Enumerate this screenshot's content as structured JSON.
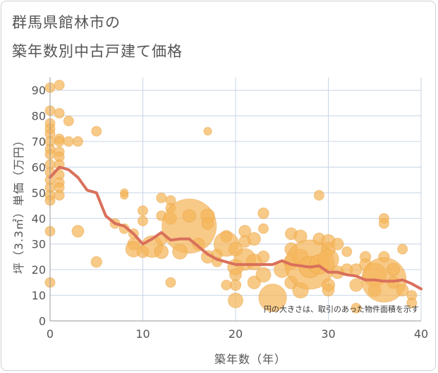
{
  "title_line1": "群馬県館林市の",
  "title_line2": "築年数別中古戸建て価格",
  "chart_data": {
    "type": "scatter",
    "title": "群馬県館林市の築年数別中古戸建て価格",
    "xlabel": "築年数（年）",
    "ylabel": "坪（3.3㎡）単価（万円）",
    "xlim": [
      0,
      40
    ],
    "ylim": [
      0,
      95
    ],
    "xticks": [
      0,
      10,
      20,
      30,
      40
    ],
    "yticks": [
      0,
      10,
      20,
      30,
      40,
      50,
      60,
      70,
      80,
      90
    ],
    "grid": true,
    "annotation": "円の大きさは、取引のあった物件面積を示す",
    "colors": {
      "bubble": "#f5b55a",
      "bubble_stroke": "#e8a444",
      "trend": "#d9705b",
      "grid": "#c8d4e3",
      "axis": "#999999"
    },
    "bubbles": [
      {
        "x": 0,
        "y": 91,
        "size": 1
      },
      {
        "x": 1,
        "y": 92,
        "size": 1
      },
      {
        "x": 0,
        "y": 82,
        "size": 1
      },
      {
        "x": 1,
        "y": 81,
        "size": 1
      },
      {
        "x": 2,
        "y": 78,
        "size": 1
      },
      {
        "x": 0,
        "y": 77,
        "size": 1
      },
      {
        "x": 0,
        "y": 75,
        "size": 1
      },
      {
        "x": 0,
        "y": 73,
        "size": 1
      },
      {
        "x": 1,
        "y": 71,
        "size": 1
      },
      {
        "x": 0,
        "y": 70,
        "size": 1
      },
      {
        "x": 1,
        "y": 70,
        "size": 1
      },
      {
        "x": 2,
        "y": 70,
        "size": 1
      },
      {
        "x": 3,
        "y": 70,
        "size": 1
      },
      {
        "x": 0,
        "y": 67,
        "size": 1
      },
      {
        "x": 1,
        "y": 66,
        "size": 1
      },
      {
        "x": 0,
        "y": 65,
        "size": 1
      },
      {
        "x": 1,
        "y": 64,
        "size": 1
      },
      {
        "x": 0,
        "y": 61,
        "size": 1
      },
      {
        "x": 1,
        "y": 61,
        "size": 1
      },
      {
        "x": 0,
        "y": 58,
        "size": 1
      },
      {
        "x": 1,
        "y": 57,
        "size": 1
      },
      {
        "x": 0,
        "y": 55,
        "size": 1
      },
      {
        "x": 1,
        "y": 54,
        "size": 1
      },
      {
        "x": 0,
        "y": 52,
        "size": 1
      },
      {
        "x": 1,
        "y": 52,
        "size": 1
      },
      {
        "x": 0,
        "y": 49,
        "size": 1
      },
      {
        "x": 1,
        "y": 49,
        "size": 1
      },
      {
        "x": 0,
        "y": 47,
        "size": 1
      },
      {
        "x": 0,
        "y": 35,
        "size": 1
      },
      {
        "x": 0,
        "y": 15,
        "size": 1
      },
      {
        "x": 5,
        "y": 74,
        "size": 1
      },
      {
        "x": 17,
        "y": 74,
        "size": 0.8
      },
      {
        "x": 3,
        "y": 35,
        "size": 1.2
      },
      {
        "x": 5,
        "y": 23,
        "size": 1.1
      },
      {
        "x": 8,
        "y": 50,
        "size": 0.8
      },
      {
        "x": 8,
        "y": 49,
        "size": 0.8
      },
      {
        "x": 7,
        "y": 38,
        "size": 1
      },
      {
        "x": 8,
        "y": 36,
        "size": 1
      },
      {
        "x": 9,
        "y": 34,
        "size": 1
      },
      {
        "x": 9,
        "y": 30,
        "size": 1.2
      },
      {
        "x": 9,
        "y": 28,
        "size": 1.6
      },
      {
        "x": 10,
        "y": 43,
        "size": 1
      },
      {
        "x": 10,
        "y": 39,
        "size": 1
      },
      {
        "x": 10,
        "y": 27,
        "size": 1.2
      },
      {
        "x": 11,
        "y": 29,
        "size": 2.2
      },
      {
        "x": 12,
        "y": 48,
        "size": 1
      },
      {
        "x": 12,
        "y": 41,
        "size": 1
      },
      {
        "x": 12,
        "y": 32,
        "size": 1.2
      },
      {
        "x": 12,
        "y": 27,
        "size": 1.4
      },
      {
        "x": 13,
        "y": 47,
        "size": 1
      },
      {
        "x": 13,
        "y": 44,
        "size": 1
      },
      {
        "x": 13,
        "y": 40,
        "size": 1.2
      },
      {
        "x": 13,
        "y": 15,
        "size": 1
      },
      {
        "x": 15,
        "y": 37,
        "size": 5.5
      },
      {
        "x": 15,
        "y": 41,
        "size": 1.3
      },
      {
        "x": 14,
        "y": 27,
        "size": 1.5
      },
      {
        "x": 16,
        "y": 30,
        "size": 1.2
      },
      {
        "x": 17,
        "y": 41,
        "size": 1.4
      },
      {
        "x": 17,
        "y": 38,
        "size": 1.2
      },
      {
        "x": 17,
        "y": 25,
        "size": 1.3
      },
      {
        "x": 18,
        "y": 26,
        "size": 1.1
      },
      {
        "x": 18,
        "y": 23,
        "size": 1
      },
      {
        "x": 19,
        "y": 33,
        "size": 1.2
      },
      {
        "x": 19,
        "y": 30,
        "size": 2.5
      },
      {
        "x": 20,
        "y": 28,
        "size": 1.4
      },
      {
        "x": 20,
        "y": 21,
        "size": 1.6
      },
      {
        "x": 20,
        "y": 18,
        "size": 1.2
      },
      {
        "x": 21,
        "y": 35,
        "size": 1.2
      },
      {
        "x": 21,
        "y": 31,
        "size": 1.2
      },
      {
        "x": 21,
        "y": 24,
        "size": 2.2
      },
      {
        "x": 22,
        "y": 32,
        "size": 1.3
      },
      {
        "x": 22,
        "y": 23,
        "size": 1.6
      },
      {
        "x": 22,
        "y": 15,
        "size": 1.3
      },
      {
        "x": 20,
        "y": 14,
        "size": 1.1
      },
      {
        "x": 19,
        "y": 14,
        "size": 1
      },
      {
        "x": 23,
        "y": 42,
        "size": 1.1
      },
      {
        "x": 23,
        "y": 36,
        "size": 1
      },
      {
        "x": 23,
        "y": 25,
        "size": 1.2
      },
      {
        "x": 23,
        "y": 18,
        "size": 1.5
      },
      {
        "x": 20,
        "y": 8,
        "size": 1.5
      },
      {
        "x": 24,
        "y": 9,
        "size": 2.8
      },
      {
        "x": 25,
        "y": 20,
        "size": 1.6
      },
      {
        "x": 26,
        "y": 34,
        "size": 1.2
      },
      {
        "x": 26,
        "y": 28,
        "size": 1.3
      },
      {
        "x": 26,
        "y": 23,
        "size": 1.5
      },
      {
        "x": 26,
        "y": 15,
        "size": 1.3
      },
      {
        "x": 27,
        "y": 33,
        "size": 1.3
      },
      {
        "x": 27,
        "y": 25,
        "size": 1.6
      },
      {
        "x": 27,
        "y": 12,
        "size": 1.6
      },
      {
        "x": 28,
        "y": 22,
        "size": 5
      },
      {
        "x": 28,
        "y": 21,
        "size": 2.2
      },
      {
        "x": 29,
        "y": 49,
        "size": 1
      },
      {
        "x": 29,
        "y": 32,
        "size": 1.2
      },
      {
        "x": 29,
        "y": 22,
        "size": 2
      },
      {
        "x": 30,
        "y": 31,
        "size": 1.4
      },
      {
        "x": 30,
        "y": 28,
        "size": 1.4
      },
      {
        "x": 30,
        "y": 24,
        "size": 2.1
      },
      {
        "x": 30,
        "y": 14,
        "size": 1.3
      },
      {
        "x": 30,
        "y": 12,
        "size": 1.2
      },
      {
        "x": 31,
        "y": 30,
        "size": 1.2
      },
      {
        "x": 31,
        "y": 19,
        "size": 1.3
      },
      {
        "x": 32,
        "y": 27,
        "size": 1
      },
      {
        "x": 32,
        "y": 20,
        "size": 1.2
      },
      {
        "x": 33,
        "y": 20,
        "size": 1.2
      },
      {
        "x": 33,
        "y": 14,
        "size": 1.3
      },
      {
        "x": 34,
        "y": 25,
        "size": 1.1
      },
      {
        "x": 34,
        "y": 22,
        "size": 1.2
      },
      {
        "x": 33,
        "y": 5,
        "size": 1
      },
      {
        "x": 35,
        "y": 18,
        "size": 2.4
      },
      {
        "x": 35,
        "y": 12,
        "size": 1.3
      },
      {
        "x": 36,
        "y": 40,
        "size": 1
      },
      {
        "x": 36,
        "y": 38,
        "size": 1
      },
      {
        "x": 36,
        "y": 25,
        "size": 1.1
      },
      {
        "x": 36,
        "y": 16,
        "size": 4.5
      },
      {
        "x": 37,
        "y": 20,
        "size": 1.3
      },
      {
        "x": 37,
        "y": 15,
        "size": 1.2
      },
      {
        "x": 38,
        "y": 28,
        "size": 1
      },
      {
        "x": 38,
        "y": 12,
        "size": 1.2
      },
      {
        "x": 39,
        "y": 10,
        "size": 1
      },
      {
        "x": 39,
        "y": 7,
        "size": 1
      }
    ],
    "trend": {
      "x": [
        0,
        1,
        2,
        3,
        4,
        5,
        6,
        7,
        8,
        9,
        10,
        11,
        12,
        13,
        14,
        15,
        16,
        17,
        18,
        19,
        20,
        21,
        22,
        23,
        24,
        25,
        26,
        27,
        28,
        29,
        30,
        31,
        32,
        33,
        34,
        35,
        36,
        37,
        38,
        39,
        40
      ],
      "y": [
        56,
        60,
        59,
        56,
        51,
        50,
        41,
        38,
        37,
        34,
        30,
        32,
        34.5,
        31.5,
        32,
        32,
        29,
        26,
        24,
        23,
        22,
        22,
        22,
        22,
        22,
        23.5,
        22,
        21.5,
        21,
        21.5,
        19,
        19,
        18,
        17.5,
        16,
        16,
        15.5,
        15.5,
        16,
        14.5,
        12.5
      ]
    }
  }
}
